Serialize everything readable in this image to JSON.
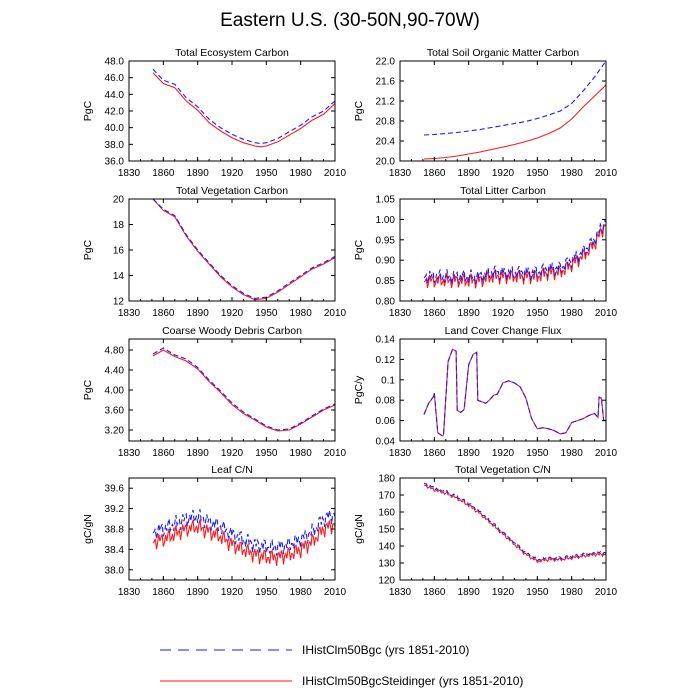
{
  "figure_title": "Eastern U.S. (30-50N,90-70W)",
  "colors": {
    "bgc": "#1a1aff",
    "steidinger": "#ff1a1a",
    "axis": "#000000"
  },
  "legend": [
    {
      "label": "IHistClm50Bgc (yrs 1851-2010)",
      "style": "dashed",
      "color": "#1a1aff"
    },
    {
      "label": "IHistClm50BgcSteidinger (yrs 1851-2010)",
      "style": "solid",
      "color": "#ff1a1a"
    }
  ],
  "chart_data": [
    {
      "type": "line",
      "title": "Total Ecosystem Carbon",
      "ylabel": "PgC",
      "xlim": [
        1830,
        2010
      ],
      "ylim": [
        36.0,
        48.0
      ],
      "xticks": [
        "1830",
        "1860",
        "1890",
        "1920",
        "1950",
        "1980",
        "2010"
      ],
      "yticks": [
        "36.0",
        "38.0",
        "40.0",
        "42.0",
        "44.0",
        "46.0",
        "48.0"
      ],
      "series": [
        {
          "name": "IHistClm50Bgc",
          "x": [
            1851,
            1860,
            1870,
            1880,
            1890,
            1900,
            1910,
            1920,
            1930,
            1940,
            1945,
            1950,
            1960,
            1970,
            1980,
            1990,
            2000,
            2010
          ],
          "y": [
            47.0,
            45.7,
            45.2,
            43.6,
            42.5,
            41.0,
            40.0,
            39.2,
            38.6,
            38.2,
            38.1,
            38.2,
            38.7,
            39.5,
            40.3,
            41.3,
            42.0,
            43.2
          ]
        },
        {
          "name": "IHistClm50BgcSteidinger",
          "x": [
            1851,
            1860,
            1870,
            1880,
            1890,
            1900,
            1910,
            1920,
            1930,
            1940,
            1945,
            1950,
            1960,
            1970,
            1980,
            1990,
            2000,
            2010
          ],
          "y": [
            46.6,
            45.3,
            44.8,
            43.2,
            42.1,
            40.6,
            39.6,
            38.8,
            38.2,
            37.8,
            37.7,
            37.8,
            38.3,
            39.1,
            39.9,
            40.9,
            41.6,
            42.9
          ]
        }
      ]
    },
    {
      "type": "line",
      "title": "Total Soil Organic Matter Carbon",
      "ylabel": "PgC",
      "xlim": [
        1830,
        2010
      ],
      "ylim": [
        20.0,
        22.0
      ],
      "xticks": [
        "1830",
        "1860",
        "1890",
        "1920",
        "1950",
        "1980",
        "2010"
      ],
      "yticks": [
        "20.0",
        "20.4",
        "20.8",
        "21.2",
        "21.6",
        "22.0"
      ],
      "series": [
        {
          "name": "IHistClm50Bgc",
          "x": [
            1851,
            1860,
            1870,
            1880,
            1890,
            1900,
            1910,
            1920,
            1930,
            1940,
            1950,
            1960,
            1970,
            1980,
            1990,
            2000,
            2010
          ],
          "y": [
            20.52,
            20.53,
            20.55,
            20.57,
            20.6,
            20.63,
            20.67,
            20.71,
            20.75,
            20.79,
            20.85,
            20.92,
            21.0,
            21.15,
            21.4,
            21.68,
            22.0
          ]
        },
        {
          "name": "IHistClm50BgcSteidinger",
          "x": [
            1851,
            1860,
            1870,
            1880,
            1890,
            1900,
            1910,
            1920,
            1930,
            1940,
            1950,
            1960,
            1970,
            1980,
            1990,
            2000,
            2010
          ],
          "y": [
            20.04,
            20.05,
            20.07,
            20.1,
            20.14,
            20.18,
            20.23,
            20.28,
            20.33,
            20.39,
            20.46,
            20.55,
            20.66,
            20.84,
            21.08,
            21.3,
            21.52
          ]
        }
      ]
    },
    {
      "type": "line",
      "title": "Total Vegetation Carbon",
      "ylabel": "PgC",
      "xlim": [
        1830,
        2010
      ],
      "ylim": [
        12,
        20
      ],
      "xticks": [
        "1830",
        "1860",
        "1890",
        "1920",
        "1950",
        "1980",
        "2010"
      ],
      "yticks": [
        "12",
        "14",
        "16",
        "18",
        "20"
      ],
      "series": [
        {
          "name": "IHistClm50Bgc",
          "x": [
            1851,
            1860,
            1870,
            1880,
            1890,
            1900,
            1910,
            1920,
            1930,
            1940,
            1950,
            1960,
            1970,
            1980,
            1990,
            2000,
            2010
          ],
          "y": [
            20.0,
            19.2,
            18.7,
            17.2,
            16.0,
            15.0,
            14.0,
            13.2,
            12.6,
            12.2,
            12.3,
            12.8,
            13.4,
            14.0,
            14.6,
            15.0,
            15.5
          ]
        },
        {
          "name": "IHistClm50BgcSteidinger",
          "x": [
            1851,
            1860,
            1870,
            1880,
            1890,
            1900,
            1910,
            1920,
            1930,
            1940,
            1950,
            1960,
            1970,
            1980,
            1990,
            2000,
            2010
          ],
          "y": [
            20.0,
            19.1,
            18.6,
            17.1,
            15.9,
            14.9,
            13.9,
            13.1,
            12.5,
            12.1,
            12.2,
            12.7,
            13.3,
            13.9,
            14.5,
            14.9,
            15.4
          ]
        }
      ]
    },
    {
      "type": "line",
      "title": "Total Litter Carbon",
      "ylabel": "PgC",
      "xlim": [
        1830,
        2010
      ],
      "ylim": [
        0.8,
        1.05
      ],
      "xticks": [
        "1830",
        "1860",
        "1890",
        "1920",
        "1950",
        "1980",
        "2010"
      ],
      "yticks": [
        "0.80",
        "0.85",
        "0.90",
        "0.95",
        "1.00",
        "1.05"
      ],
      "series": [
        {
          "name": "IHistClm50Bgc",
          "x": [
            1851,
            1860,
            1870,
            1880,
            1890,
            1900,
            1910,
            1920,
            1930,
            1940,
            1950,
            1960,
            1970,
            1980,
            1990,
            2000,
            2010
          ],
          "y": [
            0.86,
            0.86,
            0.86,
            0.86,
            0.86,
            0.86,
            0.87,
            0.87,
            0.87,
            0.87,
            0.87,
            0.88,
            0.88,
            0.9,
            0.92,
            0.95,
            1.0
          ],
          "amp": 0.02
        },
        {
          "name": "IHistClm50BgcSteidinger",
          "x": [
            1851,
            1860,
            1870,
            1880,
            1890,
            1900,
            1910,
            1920,
            1930,
            1940,
            1950,
            1960,
            1970,
            1980,
            1990,
            2000,
            2010
          ],
          "y": [
            0.85,
            0.85,
            0.85,
            0.85,
            0.85,
            0.85,
            0.86,
            0.86,
            0.86,
            0.86,
            0.86,
            0.87,
            0.87,
            0.89,
            0.91,
            0.94,
            0.99
          ],
          "amp": 0.02
        }
      ]
    },
    {
      "type": "line",
      "title": "Coarse Woody Debris Carbon",
      "ylabel": "PgC",
      "xlim": [
        1830,
        2010
      ],
      "ylim": [
        2.98,
        5.02
      ],
      "xticks": [
        "1830",
        "1860",
        "1890",
        "1920",
        "1950",
        "1980",
        "2010"
      ],
      "yticks": [
        "3.20",
        "3.60",
        "4.00",
        "4.40",
        "4.80"
      ],
      "series": [
        {
          "name": "IHistClm50Bgc",
          "x": [
            1851,
            1860,
            1870,
            1880,
            1890,
            1900,
            1910,
            1920,
            1930,
            1940,
            1950,
            1960,
            1970,
            1980,
            1990,
            2000,
            2010
          ],
          "y": [
            4.72,
            4.84,
            4.7,
            4.62,
            4.45,
            4.2,
            3.98,
            3.74,
            3.56,
            3.42,
            3.28,
            3.2,
            3.22,
            3.34,
            3.48,
            3.62,
            3.72
          ]
        },
        {
          "name": "IHistClm50BgcSteidinger",
          "x": [
            1851,
            1860,
            1870,
            1880,
            1890,
            1900,
            1910,
            1920,
            1930,
            1940,
            1950,
            1960,
            1970,
            1980,
            1990,
            2000,
            2010
          ],
          "y": [
            4.68,
            4.8,
            4.67,
            4.58,
            4.42,
            4.17,
            3.95,
            3.71,
            3.53,
            3.4,
            3.26,
            3.18,
            3.2,
            3.32,
            3.46,
            3.6,
            3.7
          ]
        }
      ]
    },
    {
      "type": "line",
      "title": "Land Cover Change Flux",
      "ylabel": "PgC/y",
      "xlim": [
        1830,
        2010
      ],
      "ylim": [
        0.04,
        0.14
      ],
      "xticks": [
        "1830",
        "1860",
        "1890",
        "1920",
        "1950",
        "1980",
        "2010"
      ],
      "yticks": [
        "0.04",
        "0.06",
        "0.08",
        "0.1",
        "0.12",
        "0.14"
      ],
      "series": [
        {
          "name": "IHistClm50Bgc",
          "x": [
            1851,
            1855,
            1859,
            1860,
            1863,
            1867,
            1868,
            1872,
            1876,
            1879,
            1880,
            1883,
            1886,
            1890,
            1894,
            1897,
            1898,
            1900,
            1905,
            1908,
            1912,
            1915,
            1920,
            1925,
            1930,
            1935,
            1940,
            1945,
            1950,
            1955,
            1960,
            1965,
            1970,
            1975,
            1980,
            1985,
            1990,
            1995,
            2000,
            2003,
            2004,
            2006,
            2008,
            2010
          ],
          "y": [
            0.066,
            0.077,
            0.083,
            0.087,
            0.048,
            0.045,
            0.046,
            0.118,
            0.13,
            0.128,
            0.07,
            0.068,
            0.071,
            0.115,
            0.125,
            0.127,
            0.08,
            0.079,
            0.077,
            0.08,
            0.085,
            0.086,
            0.097,
            0.099,
            0.097,
            0.093,
            0.082,
            0.062,
            0.052,
            0.053,
            0.052,
            0.05,
            0.047,
            0.048,
            0.058,
            0.06,
            0.062,
            0.065,
            0.067,
            0.063,
            0.083,
            0.082,
            0.06,
            0.06
          ]
        },
        {
          "name": "IHistClm50BgcSteidinger",
          "x": [
            1851,
            1855,
            1859,
            1860,
            1863,
            1867,
            1868,
            1872,
            1876,
            1879,
            1880,
            1883,
            1886,
            1890,
            1894,
            1897,
            1898,
            1900,
            1905,
            1908,
            1912,
            1915,
            1920,
            1925,
            1930,
            1935,
            1940,
            1945,
            1950,
            1955,
            1960,
            1965,
            1970,
            1975,
            1980,
            1985,
            1990,
            1995,
            2000,
            2003,
            2004,
            2006,
            2008,
            2010
          ],
          "y": [
            0.066,
            0.077,
            0.083,
            0.087,
            0.048,
            0.045,
            0.046,
            0.118,
            0.13,
            0.128,
            0.07,
            0.068,
            0.071,
            0.115,
            0.125,
            0.127,
            0.08,
            0.079,
            0.077,
            0.08,
            0.085,
            0.086,
            0.097,
            0.099,
            0.097,
            0.093,
            0.082,
            0.062,
            0.052,
            0.053,
            0.052,
            0.05,
            0.047,
            0.048,
            0.058,
            0.06,
            0.062,
            0.065,
            0.067,
            0.063,
            0.083,
            0.082,
            0.06,
            0.06
          ]
        }
      ]
    },
    {
      "type": "line",
      "title": "Leaf C/N",
      "ylabel": "gC/gN",
      "xlim": [
        1830,
        2010
      ],
      "ylim": [
        37.8,
        39.8
      ],
      "xticks": [
        "1830",
        "1860",
        "1890",
        "1920",
        "1950",
        "1980",
        "2010"
      ],
      "yticks": [
        "38.0",
        "38.4",
        "38.8",
        "39.2",
        "39.6"
      ],
      "series": [
        {
          "name": "IHistClm50Bgc",
          "x": [
            1851,
            1860,
            1870,
            1880,
            1890,
            1900,
            1910,
            1920,
            1930,
            1940,
            1950,
            1960,
            1970,
            1980,
            1990,
            2000,
            2010
          ],
          "y": [
            38.75,
            38.8,
            38.9,
            39.0,
            39.05,
            38.95,
            38.85,
            38.7,
            38.6,
            38.5,
            38.45,
            38.45,
            38.5,
            38.6,
            38.75,
            39.0,
            39.1
          ],
          "amp": 0.18
        },
        {
          "name": "IHistClm50BgcSteidinger",
          "x": [
            1851,
            1860,
            1870,
            1880,
            1890,
            1900,
            1910,
            1920,
            1930,
            1940,
            1950,
            1960,
            1970,
            1980,
            1990,
            2000,
            2010
          ],
          "y": [
            38.55,
            38.6,
            38.7,
            38.8,
            38.85,
            38.75,
            38.65,
            38.5,
            38.4,
            38.3,
            38.25,
            38.25,
            38.3,
            38.4,
            38.55,
            38.8,
            38.9
          ],
          "amp": 0.18
        }
      ]
    },
    {
      "type": "line",
      "title": "Total Vegetation C/N",
      "ylabel": "gC/gN",
      "xlim": [
        1830,
        2010
      ],
      "ylim": [
        120,
        180
      ],
      "xticks": [
        "1830",
        "1860",
        "1890",
        "1920",
        "1950",
        "1980",
        "2010"
      ],
      "yticks": [
        "120",
        "130",
        "140",
        "150",
        "160",
        "170",
        "180"
      ],
      "series": [
        {
          "name": "IHistClm50Bgc",
          "x": [
            1851,
            1860,
            1870,
            1880,
            1890,
            1900,
            1910,
            1920,
            1930,
            1940,
            1950,
            1960,
            1970,
            1980,
            1990,
            2000,
            2010
          ],
          "y": [
            177,
            174,
            172,
            169,
            165,
            160,
            154,
            148,
            142,
            136,
            132,
            133,
            133,
            134,
            135,
            136,
            136
          ],
          "amp": 1.0
        },
        {
          "name": "IHistClm50BgcSteidinger",
          "x": [
            1851,
            1860,
            1870,
            1880,
            1890,
            1900,
            1910,
            1920,
            1930,
            1940,
            1950,
            1960,
            1970,
            1980,
            1990,
            2000,
            2010
          ],
          "y": [
            176,
            173,
            171,
            168,
            164,
            159,
            153,
            147,
            141,
            135,
            131,
            132,
            132,
            133,
            134,
            135,
            135
          ],
          "amp": 1.0
        }
      ]
    }
  ]
}
